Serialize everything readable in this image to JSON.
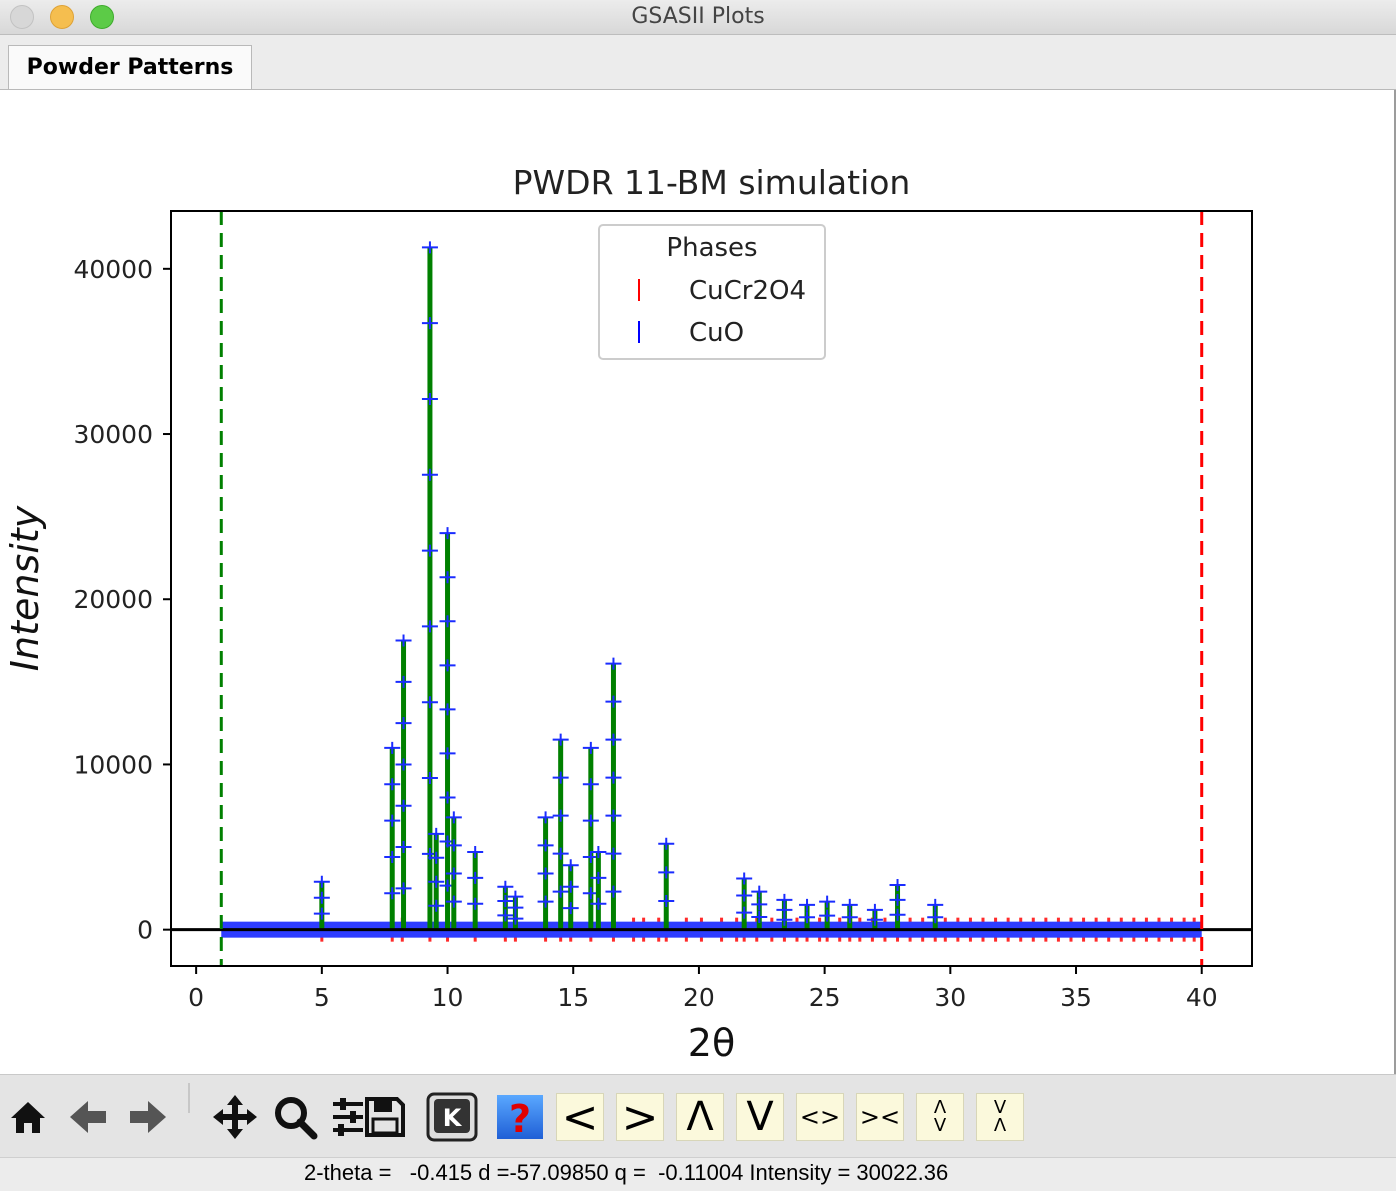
{
  "window": {
    "title": "GSASII Plots"
  },
  "tabs": [
    {
      "label": "Powder Patterns"
    }
  ],
  "chart_data": {
    "type": "line",
    "title": "PWDR 11-BM simulation",
    "xlabel": "2θ",
    "ylabel": "Intensity",
    "xlim": [
      -1,
      42
    ],
    "ylim": [
      -2200,
      43500
    ],
    "xticks": [
      0,
      5,
      10,
      15,
      20,
      25,
      30,
      35,
      40
    ],
    "yticks": [
      0,
      10000,
      20000,
      30000,
      40000
    ],
    "limits": {
      "lower": 1.0,
      "upper": 40.0,
      "lower_color": "#008000",
      "upper_color": "#ff0000"
    },
    "legend": {
      "title": "Phases",
      "placement": "top-center",
      "entries": [
        {
          "name": "CuCr2O4",
          "color": "#ff0000"
        },
        {
          "name": "CuO",
          "color": "#0000ff"
        }
      ]
    },
    "peaks": [
      {
        "x": 5.0,
        "y": 2900
      },
      {
        "x": 7.8,
        "y": 11000
      },
      {
        "x": 8.25,
        "y": 17500
      },
      {
        "x": 9.3,
        "y": 41300
      },
      {
        "x": 9.55,
        "y": 5800
      },
      {
        "x": 10.0,
        "y": 24000
      },
      {
        "x": 10.25,
        "y": 6800
      },
      {
        "x": 11.1,
        "y": 4700
      },
      {
        "x": 12.3,
        "y": 2600
      },
      {
        "x": 12.7,
        "y": 2000
      },
      {
        "x": 13.9,
        "y": 6800
      },
      {
        "x": 14.5,
        "y": 11500
      },
      {
        "x": 14.9,
        "y": 3900
      },
      {
        "x": 15.7,
        "y": 11000
      },
      {
        "x": 16.0,
        "y": 4700
      },
      {
        "x": 16.6,
        "y": 16100
      },
      {
        "x": 18.7,
        "y": 5200
      },
      {
        "x": 21.8,
        "y": 3100
      },
      {
        "x": 22.4,
        "y": 2300
      },
      {
        "x": 23.4,
        "y": 1800
      },
      {
        "x": 24.3,
        "y": 1500
      },
      {
        "x": 25.1,
        "y": 1700
      },
      {
        "x": 26.0,
        "y": 1500
      },
      {
        "x": 27.0,
        "y": 1200
      },
      {
        "x": 27.9,
        "y": 2700
      },
      {
        "x": 29.4,
        "y": 1500
      }
    ],
    "reflection_ticks": {
      "CuCr2O4": [
        5.0,
        7.8,
        8.2,
        9.3,
        10.0,
        11.1,
        12.3,
        12.7,
        13.9,
        14.5,
        14.9,
        15.7,
        16.6,
        17.4,
        17.8,
        18.4,
        18.7,
        19.5,
        20.1,
        20.9,
        21.5,
        21.8,
        22.3,
        22.9,
        23.4,
        23.9,
        24.3,
        24.8,
        25.1,
        25.6,
        26.0,
        26.4,
        26.9,
        27.4,
        27.9,
        28.4,
        28.9,
        29.4,
        29.8,
        30.3,
        30.8,
        31.3,
        31.8,
        32.3,
        32.8,
        33.3,
        33.8,
        34.3,
        34.8,
        35.3,
        35.8,
        36.3,
        36.8,
        37.3,
        37.8,
        38.3,
        38.8,
        39.3,
        39.7
      ]
    },
    "series": [
      {
        "name": "CuCr2O4"
      },
      {
        "name": "CuO"
      }
    ]
  },
  "toolbar": {
    "buttons": [
      {
        "icon": "home-icon"
      },
      {
        "icon": "back-arrow-icon"
      },
      {
        "icon": "forward-arrow-icon"
      },
      {
        "icon": "pan-move-icon"
      },
      {
        "icon": "zoom-magnifier-icon"
      },
      {
        "icon": "configure-subplots-icon"
      },
      {
        "icon": "save-disk-icon"
      },
      {
        "icon": "k-key-icon",
        "label": "K"
      },
      {
        "icon": "help-icon",
        "label": "?"
      }
    ],
    "nav": [
      {
        "label": "<"
      },
      {
        "label": ">"
      },
      {
        "label": "Λ"
      },
      {
        "label": "V"
      },
      {
        "label": "<>"
      },
      {
        "label": "><"
      },
      {
        "label": "Λ\nV"
      },
      {
        "label": "V\nΛ"
      }
    ]
  },
  "status": {
    "text": "2-theta =   -0.415 d =-57.09850 q =  -0.11004 Intensity = 30022.36"
  }
}
